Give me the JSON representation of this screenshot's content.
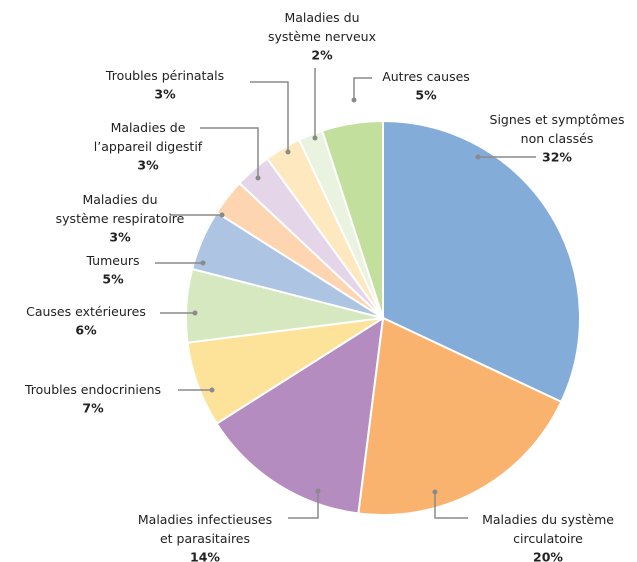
{
  "chart_data": {
    "type": "pie",
    "categories": [
      "Signes et symptômes\nnon classés",
      "Maladies du système\ncirculatoire",
      "Maladies infectieuses\net parasitaires",
      "Troubles endocriniens",
      "Causes extérieures",
      "Tumeurs",
      "Maladies du\nsystème respiratoire",
      "Maladies de\nl’appareil digestif",
      "Troubles périnatals",
      "Maladies du\nsystème nerveux",
      "Autres causes"
    ],
    "values": [
      32,
      20,
      14,
      7,
      6,
      5,
      3,
      3,
      3,
      2,
      5
    ],
    "value_labels": [
      "32%",
      "20%",
      "14%",
      "7%",
      "6%",
      "5%",
      "3%",
      "3%",
      "3%",
      "2%",
      "5%"
    ],
    "colors": [
      "#84acd9",
      "#f9b36f",
      "#b58cc0",
      "#fde29a",
      "#d5e8c0",
      "#aec4e3",
      "#fdd5b0",
      "#e5d5e9",
      "#fde8c0",
      "#eaf2e0",
      "#c3df9d"
    ]
  }
}
